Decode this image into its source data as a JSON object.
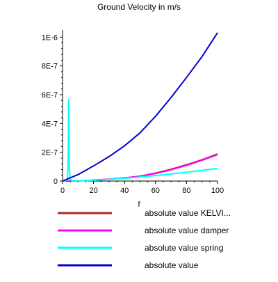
{
  "chart_data": {
    "type": "line",
    "title": "Ground Velocity in m/s",
    "xlabel": "f",
    "ylabel": "",
    "xlim": [
      0,
      100
    ],
    "ylim": [
      0,
      1.05e-06
    ],
    "x_ticks": [
      0,
      20,
      40,
      60,
      80,
      100
    ],
    "x_tick_labels": [
      "0",
      "20",
      "40",
      "60",
      "80",
      "100"
    ],
    "y_ticks": [
      0,
      2e-07,
      4e-07,
      6e-07,
      8e-07,
      1e-06
    ],
    "y_tick_labels": [
      "0",
      "2E-7",
      "4E-7",
      "6E-7",
      "8E-7",
      "1E-6"
    ],
    "grid": false,
    "legend_position": "bottom",
    "series": [
      {
        "name": "absolute value KELVI...",
        "color": "#a52a2a",
        "x": [
          0,
          10,
          20,
          30,
          40,
          50,
          60,
          70,
          80,
          90,
          100
        ],
        "y": [
          0,
          1.5e-09,
          6e-09,
          1.3e-08,
          2.2e-08,
          3.4e-08,
          5.5e-08,
          8.2e-08,
          1.13e-07,
          1.48e-07,
          1.88e-07
        ]
      },
      {
        "name": "absolute value damper",
        "color": "#ff00ff",
        "x": [
          0,
          10,
          20,
          30,
          40,
          50,
          60,
          70,
          80,
          90,
          100
        ],
        "y": [
          0,
          1.5e-09,
          6e-09,
          1.3e-08,
          2.2e-08,
          3.3e-08,
          5.2e-08,
          7.8e-08,
          1.09e-07,
          1.44e-07,
          1.83e-07
        ]
      },
      {
        "name": "absolute value spring",
        "color": "#00ffff",
        "x": [
          0,
          2,
          3,
          3.6,
          4,
          4.4,
          5,
          6,
          8,
          10,
          20,
          30,
          40,
          50,
          60,
          70,
          80,
          90,
          100
        ],
        "y": [
          0,
          2e-09,
          1e-08,
          1e-07,
          5.7e-07,
          8e-08,
          1.2e-08,
          3e-09,
          1e-09,
          2e-09,
          5e-09,
          1.2e-08,
          1.9e-08,
          2.8e-08,
          3.8e-08,
          4.9e-08,
          6.1e-08,
          7.4e-08,
          8.8e-08
        ]
      },
      {
        "name": "absolute value",
        "color": "#0000cd",
        "x": [
          0,
          10,
          20,
          30,
          40,
          50,
          60,
          70,
          80,
          90,
          100
        ],
        "y": [
          0,
          4.5e-08,
          1.05e-07,
          1.7e-07,
          2.45e-07,
          3.35e-07,
          4.5e-07,
          5.8e-07,
          7.2e-07,
          8.65e-07,
          1.03e-06
        ]
      }
    ]
  }
}
